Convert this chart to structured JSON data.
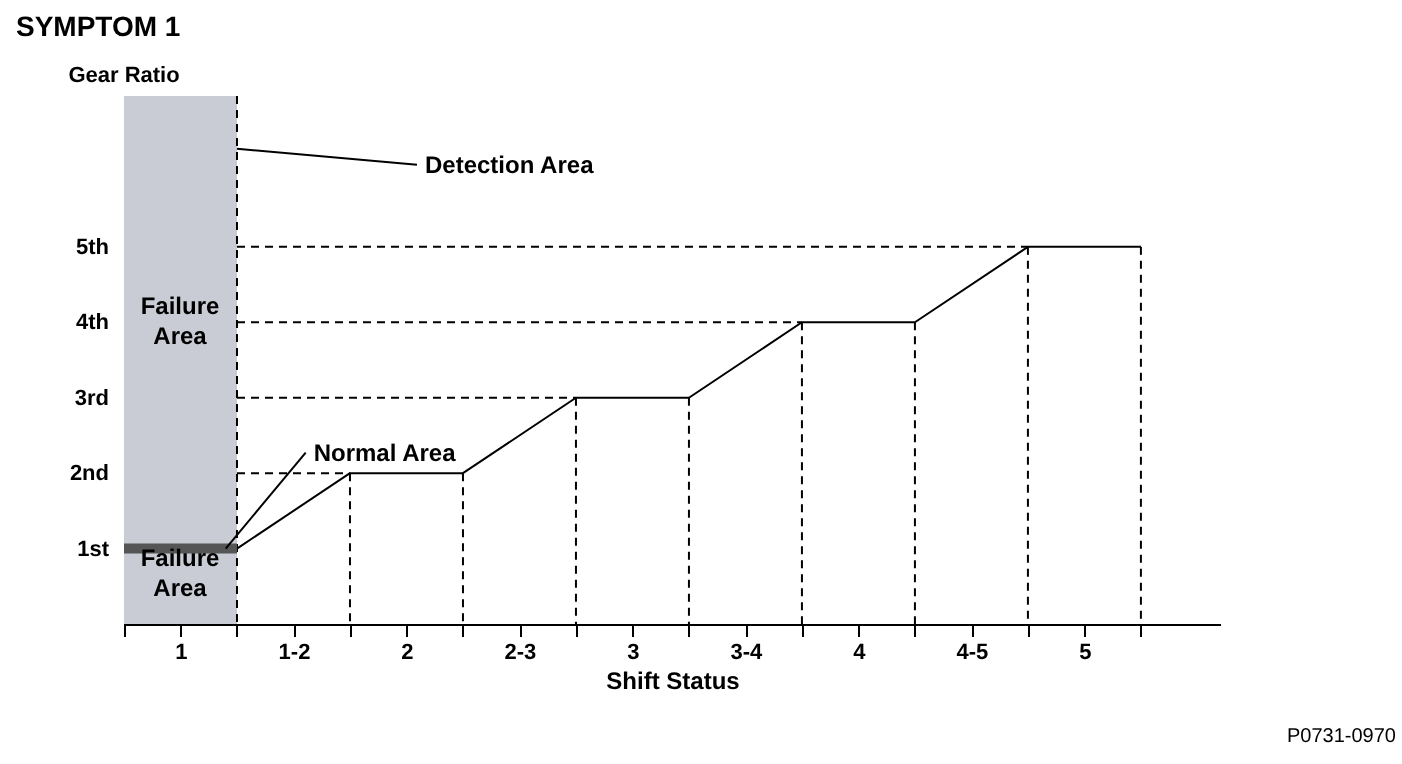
{
  "chart_data": {
    "type": "line",
    "title": "SYMPTOM 1",
    "xlabel": "Shift Status",
    "ylabel": "Gear Ratio",
    "xlim": [
      0.75,
      5.6
    ],
    "ylim": [
      0,
      7
    ],
    "xticks": [
      {
        "value": 0.75,
        "label": null
      },
      1,
      {
        "value": 1.25,
        "label": null
      },
      {
        "value": 1.5,
        "label": "1-2"
      },
      {
        "value": 1.75,
        "label": null
      },
      2,
      {
        "value": 2.25,
        "label": null
      },
      {
        "value": 2.5,
        "label": "2-3"
      },
      {
        "value": 2.75,
        "label": null
      },
      3,
      {
        "value": 3.25,
        "label": null
      },
      {
        "value": 3.5,
        "label": "3-4"
      },
      {
        "value": 3.75,
        "label": null
      },
      4,
      {
        "value": 4.25,
        "label": null
      },
      {
        "value": 4.5,
        "label": "4-5"
      },
      {
        "value": 4.75,
        "label": null
      },
      5,
      {
        "value": 5.25,
        "label": null
      }
    ],
    "yticks": [
      {
        "value": 1,
        "label": "1st"
      },
      {
        "value": 2,
        "label": "2nd"
      },
      {
        "value": 3,
        "label": "3rd"
      },
      {
        "value": 4,
        "label": "4th"
      },
      {
        "value": 5,
        "label": "5th"
      }
    ],
    "bands": [
      {
        "axis": "x",
        "from": 0.75,
        "to": 1.25,
        "color": "#c9ccd4"
      }
    ],
    "series": [
      {
        "color": "#000000",
        "line_style": "solid",
        "x": [
          1.25,
          1.75,
          2.25,
          2.75,
          3.25,
          3.75,
          4.25,
          4.75,
          5.25
        ],
        "values": [
          1,
          2,
          2,
          3,
          3,
          4,
          4,
          5,
          5
        ]
      },
      {
        "color": "#000000",
        "line_style": "dashed",
        "x": [
          1.25,
          1.75,
          null,
          1.25,
          2.75,
          null,
          1.25,
          3.75,
          null,
          1.25,
          4.75,
          null,
          1.75,
          1.75,
          null,
          2.25,
          2.25,
          null,
          2.75,
          2.75,
          null,
          3.25,
          3.25,
          null,
          3.75,
          3.75,
          null,
          4.25,
          4.25,
          null,
          4.75,
          4.75,
          null,
          5.25,
          5.25,
          null,
          1.25,
          1.25
        ],
        "values": [
          2,
          2,
          null,
          3,
          3,
          null,
          4,
          4,
          null,
          5,
          5,
          null,
          2,
          0,
          null,
          2,
          0,
          null,
          3,
          0,
          null,
          3,
          0,
          null,
          4,
          0,
          null,
          4,
          0,
          null,
          5,
          0,
          null,
          5,
          0,
          null,
          7,
          0
        ]
      },
      {
        "color": "#555555",
        "line_style": "solid",
        "x": [
          0.75,
          1.25
        ],
        "values": [
          1,
          1
        ]
      }
    ],
    "annotations": [
      {
        "text": "Detection Area",
        "x": 1.25,
        "y": 6.3
      },
      "Failure Area",
      {
        "text": "Normal Area",
        "x": 1.2,
        "y": 1
      },
      "Failure Area",
      "P0731-0970"
    ]
  }
}
